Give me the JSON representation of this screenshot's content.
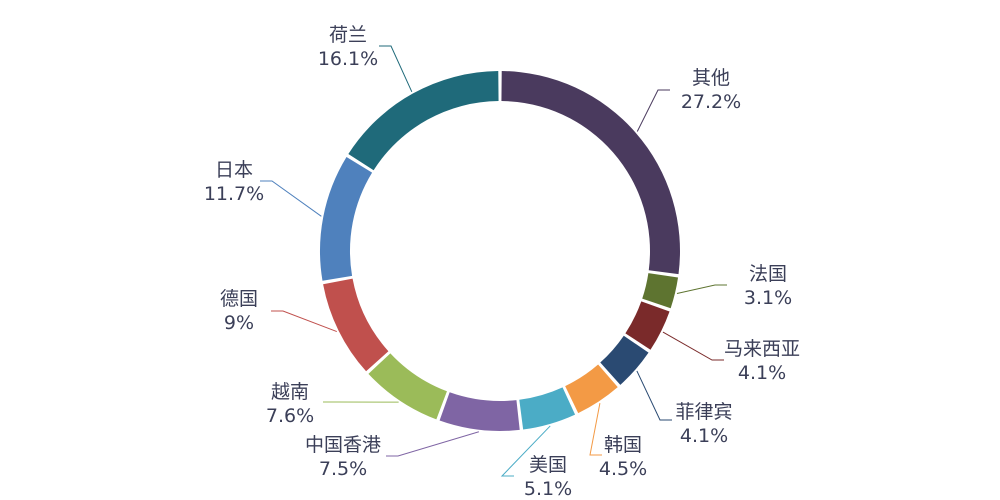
{
  "chart_data": {
    "type": "pie",
    "donut": true,
    "title": "",
    "legend": "none",
    "slices": [
      {
        "label": "其他",
        "value": 27.2,
        "value_label": "27.2%",
        "color": "#4a3a5e"
      },
      {
        "label": "法国",
        "value": 3.1,
        "value_label": "3.1%",
        "color": "#5e7430"
      },
      {
        "label": "马来西亚",
        "value": 4.1,
        "value_label": "4.1%",
        "color": "#7a2a2a"
      },
      {
        "label": "菲律宾",
        "value": 4.1,
        "value_label": "4.1%",
        "color": "#2a4a72"
      },
      {
        "label": "韩国",
        "value": 4.5,
        "value_label": "4.5%",
        "color": "#f39a45"
      },
      {
        "label": "美国",
        "value": 5.1,
        "value_label": "5.1%",
        "color": "#4bacc6"
      },
      {
        "label": "中国香港",
        "value": 7.5,
        "value_label": "7.5%",
        "color": "#7f65a4"
      },
      {
        "label": "越南",
        "value": 7.6,
        "value_label": "7.6%",
        "color": "#9bbb59"
      },
      {
        "label": "德国",
        "value": 9,
        "value_label": "9%",
        "color": "#c0504d"
      },
      {
        "label": "日本",
        "value": 11.7,
        "value_label": "11.7%",
        "color": "#4f81bd"
      },
      {
        "label": "荷兰",
        "value": 16.1,
        "value_label": "16.1%",
        "color": "#1f6a7a"
      }
    ]
  }
}
